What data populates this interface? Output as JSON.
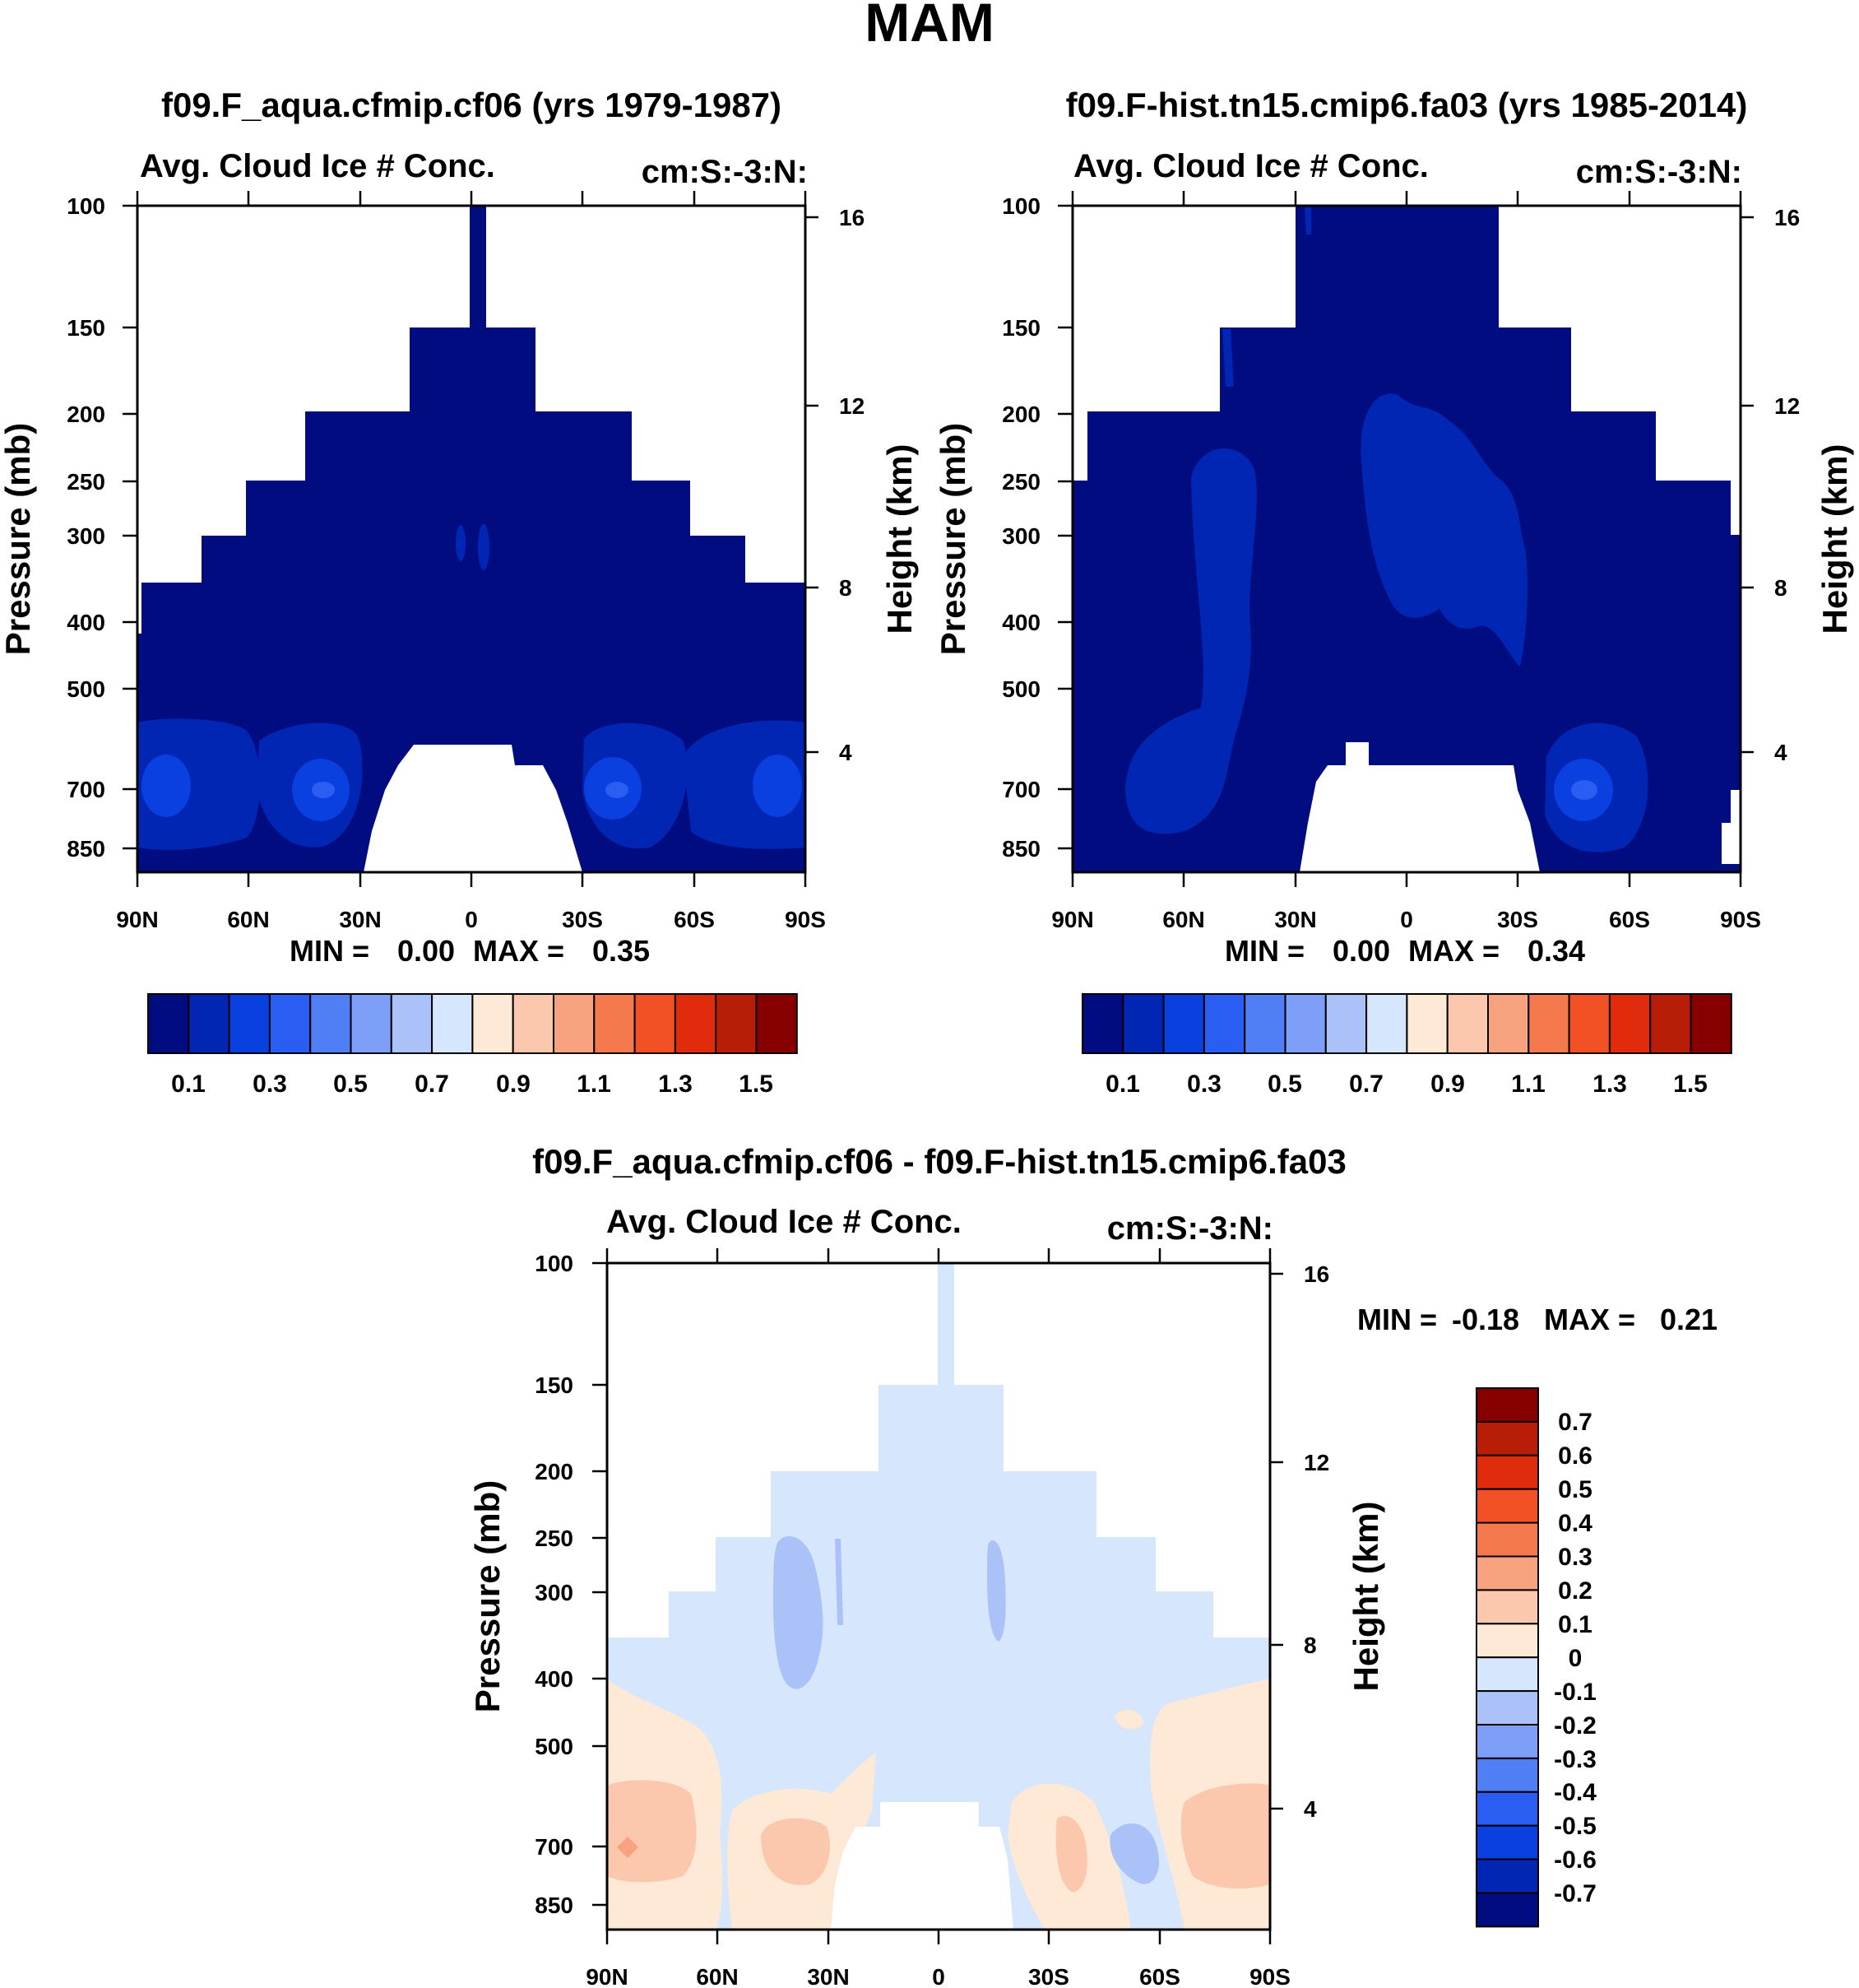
{
  "figure": {
    "title": "MAM"
  },
  "colors": {
    "seq": [
      "#000c80",
      "#0026b3",
      "#0a3fe0",
      "#2a5df2",
      "#4f7ef5",
      "#7d9ff7",
      "#abc2f9",
      "#d6e6fd",
      "#fde9d6",
      "#fbc7ad",
      "#f8a27f",
      "#f47a4e",
      "#f15125",
      "#e02b0c",
      "#b81d08",
      "#860000"
    ],
    "div": [
      "#000c80",
      "#0026b3",
      "#0a3fe0",
      "#2a5df2",
      "#4f7ef5",
      "#7d9ff7",
      "#abc2f9",
      "#d6e6fd",
      "#fde9d6",
      "#fbc7ad",
      "#f8a27f",
      "#f47a4e",
      "#f15125",
      "#e02b0c",
      "#b81d08",
      "#860000"
    ]
  },
  "chart_data": [
    {
      "type": "heatmap",
      "panel": "p1",
      "title": "f09.F_aqua.cfmip.cf06 (yrs 1979-1987)",
      "left_label": "Avg. Cloud Ice # Conc.",
      "right_label": "cm:S:-3:N:",
      "ylabel": "Pressure (mb)",
      "ylabel_right": "Height (km)",
      "x_ticks": [
        "90N",
        "60N",
        "30N",
        "0",
        "30S",
        "60S",
        "90S"
      ],
      "y_ticks": [
        "100",
        "150",
        "200",
        "250",
        "300",
        "400",
        "500",
        "700",
        "850"
      ],
      "y_ticks_right": [
        "16",
        "12",
        "8",
        "4"
      ],
      "min_label": "MIN =",
      "min_value": "0.00",
      "max_label": "MAX =",
      "max_value": "0.35",
      "colorbar_labels": [
        "0.1",
        "0.3",
        "0.5",
        "0.7",
        "0.9",
        "1.1",
        "1.3",
        "1.5"
      ]
    },
    {
      "type": "heatmap",
      "panel": "p2",
      "title": "f09.F-hist.tn15.cmip6.fa03 (yrs 1985-2014)",
      "left_label": "Avg. Cloud Ice # Conc.",
      "right_label": "cm:S:-3:N:",
      "ylabel": "Pressure (mb)",
      "ylabel_right": "Height (km)",
      "x_ticks": [
        "90N",
        "60N",
        "30N",
        "0",
        "30S",
        "60S",
        "90S"
      ],
      "y_ticks": [
        "100",
        "150",
        "200",
        "250",
        "300",
        "400",
        "500",
        "700",
        "850"
      ],
      "y_ticks_right": [
        "16",
        "12",
        "8",
        "4"
      ],
      "min_label": "MIN =",
      "min_value": "0.00",
      "max_label": "MAX =",
      "max_value": "0.34",
      "colorbar_labels": [
        "0.1",
        "0.3",
        "0.5",
        "0.7",
        "0.9",
        "1.1",
        "1.3",
        "1.5"
      ]
    },
    {
      "type": "heatmap",
      "panel": "p3",
      "title": "f09.F_aqua.cfmip.cf06 - f09.F-hist.tn15.cmip6.fa03",
      "left_label": "Avg. Cloud Ice # Conc.",
      "right_label": "cm:S:-3:N:",
      "ylabel": "Pressure (mb)",
      "ylabel_right": "Height (km)",
      "x_ticks": [
        "90N",
        "60N",
        "30N",
        "0",
        "30S",
        "60S",
        "90S"
      ],
      "y_ticks": [
        "100",
        "150",
        "200",
        "250",
        "300",
        "400",
        "500",
        "700",
        "850"
      ],
      "y_ticks_right": [
        "16",
        "12",
        "8",
        "4"
      ],
      "min_label": "MIN =",
      "min_value": "-0.18",
      "max_label": "MAX =",
      "max_value": "0.21",
      "colorbar_labels": [
        "0.7",
        "0.6",
        "0.5",
        "0.4",
        "0.3",
        "0.2",
        "0.1",
        "0",
        "-0.1",
        "-0.2",
        "-0.3",
        "-0.4",
        "-0.5",
        "-0.6",
        "-0.7"
      ]
    }
  ]
}
